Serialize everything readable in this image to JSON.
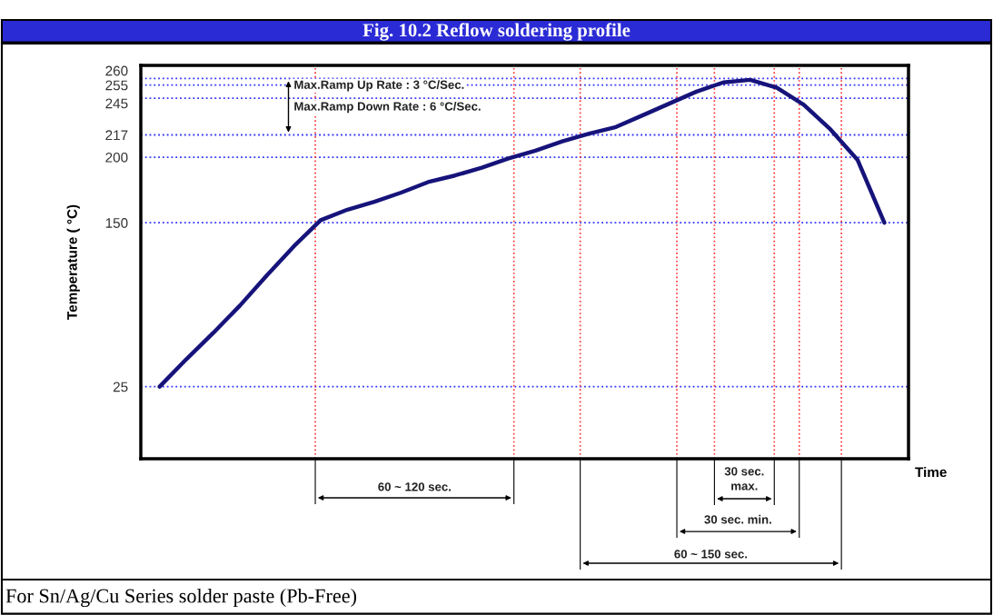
{
  "chart_data": {
    "type": "line",
    "title": "Fig. 10.2 Reflow soldering profile",
    "xlabel": "Time",
    "ylabel": "Temperature ( °C)",
    "categories": [
      null,
      null,
      null,
      null,
      null,
      null,
      null,
      null,
      null,
      null,
      null,
      null,
      null,
      null,
      null,
      null,
      null,
      null,
      null,
      null,
      null,
      null,
      null,
      null,
      null,
      null,
      null,
      null
    ],
    "series": [
      {
        "color": "#16137a",
        "values": [
          25,
          46,
          66,
          87,
          110,
          132,
          152,
          160,
          166,
          173,
          181,
          186,
          192,
          199,
          205,
          212,
          218,
          223,
          232,
          241,
          250,
          257,
          259,
          253,
          240,
          221,
          198,
          150
        ]
      }
    ],
    "ylim": [
      -30,
      270
    ],
    "yticks": [
      25,
      150,
      200,
      217,
      245,
      255,
      260
    ],
    "grid": "y",
    "marker": "none",
    "line_style": "solid",
    "annotations": [
      "Max.Ramp Up Rate : 3 °C/Sec.",
      "Max.Ramp Down Rate : 6 °C/Sec.",
      "60 ~ 120 sec.",
      "30 sec.\nmax.",
      "30 sec. min.",
      "60 ~ 150 sec.",
      "For Sn/Ag/Cu Series solder paste (Pb-Free)"
    ]
  }
}
